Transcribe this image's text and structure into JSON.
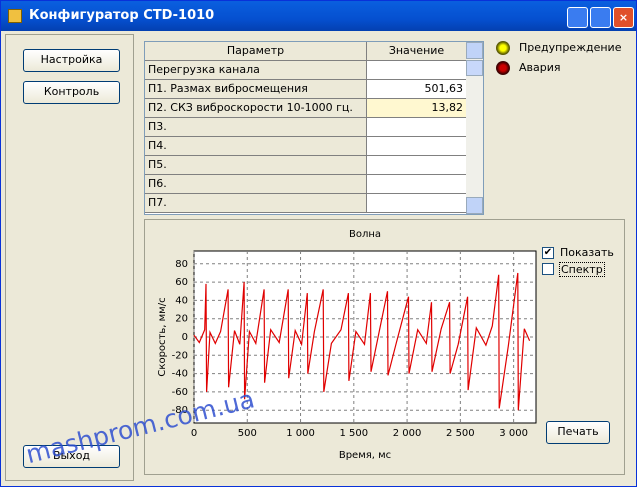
{
  "window": {
    "title": "Конфигуратор СТD-1010"
  },
  "buttons": {
    "settings": "Настройка",
    "control": "Контроль",
    "exit": "Выход",
    "print": "Печать"
  },
  "table": {
    "headers": [
      "Параметр",
      "Значение"
    ],
    "rows": [
      [
        "Перегрузка канала",
        ""
      ],
      [
        "П1. Размах виброcмещения",
        "501,63"
      ],
      [
        "П2. СКЗ виброскорости 10-1000 гц.",
        "13,82"
      ],
      [
        "П3.",
        ""
      ],
      [
        "П4.",
        ""
      ],
      [
        "П5.",
        ""
      ],
      [
        "П6.",
        ""
      ],
      [
        "П7.",
        ""
      ]
    ]
  },
  "indicators": [
    "Предупреждение",
    "Авария"
  ],
  "checkboxes": [
    {
      "label": "Показать",
      "checked": true
    },
    {
      "label": "Спектр",
      "checked": false
    }
  ],
  "watermark": "mashprom.com.ua",
  "chart_data": {
    "type": "line",
    "title": "Волна",
    "x_label": "Время, мс",
    "y_label": "Скорость, мм/с",
    "color": "#e00000",
    "grid": true,
    "xlim": [
      0,
      3210
    ],
    "ylim": [
      -94,
      94
    ],
    "xticks": [
      0,
      500,
      {
        "value": 1000,
        "label": "1 000"
      },
      {
        "value": 1500,
        "label": "1 500"
      },
      {
        "value": 2000,
        "label": "2 000"
      },
      {
        "value": 2500,
        "label": "2 500"
      },
      {
        "value": 3000,
        "label": "3 000"
      }
    ],
    "yticks": [
      80,
      60,
      40,
      20,
      0,
      -20,
      -40,
      -60,
      -80
    ],
    "x": [
      0,
      50,
      100,
      113,
      118,
      150,
      200,
      250,
      320,
      325,
      380,
      430,
      470,
      475,
      520,
      580,
      658,
      663,
      720,
      800,
      884,
      889,
      950,
      1010,
      1063,
      1068,
      1130,
      1213,
      1218,
      1290,
      1380,
      1449,
      1454,
      1520,
      1600,
      1656,
      1661,
      1740,
      1816,
      1821,
      1900,
      2013,
      2018,
      2100,
      2180,
      2229,
      2234,
      2320,
      2399,
      2404,
      2480,
      2568,
      2573,
      2650,
      2740,
      2800,
      2860,
      2865,
      2950,
      3039,
      3044,
      3100,
      3150
    ],
    "values": [
      2,
      -6,
      8,
      58,
      -60,
      5,
      -7,
      6,
      52,
      -55,
      7,
      -8,
      60,
      -68,
      6,
      -7,
      52,
      -50,
      8,
      -6,
      52,
      -45,
      7,
      -8,
      48,
      -40,
      6,
      52,
      -60,
      -7,
      8,
      48,
      -48,
      6,
      -8,
      48,
      -38,
      7,
      50,
      -42,
      -6,
      44,
      -40,
      8,
      -7,
      38,
      -38,
      9,
      38,
      -40,
      -8,
      44,
      -58,
      10,
      -9,
      12,
      68,
      -78,
      -10,
      70,
      -80,
      9,
      -4
    ]
  }
}
